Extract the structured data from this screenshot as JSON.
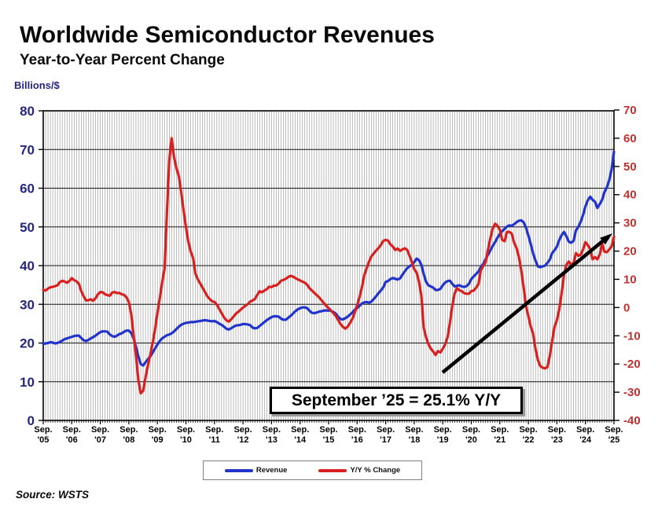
{
  "page": {
    "title": "Worldwide Semiconductor Revenues",
    "subtitle": "Year-to-Year Percent Change",
    "left_axis_unit": "Billions/$",
    "source": "Source: WSTS"
  },
  "annotation": {
    "label": "September ’25 = 25.1% Y/Y"
  },
  "legend": {
    "items": [
      {
        "label": "Revenue",
        "color": "#2233cc"
      },
      {
        "label": "Y/Y % Change",
        "color": "#d92020"
      }
    ]
  },
  "colors": {
    "revenue_line": "#2233cc",
    "yoy_line": "#d92020",
    "left_axis_text": "#26267f",
    "right_axis_text": "#c13030",
    "grid_vertical": "#8e8e8e",
    "grid_horizontal": "#161616",
    "plot_border": "#000000",
    "arrow": "#000000"
  },
  "chart_data": {
    "type": "line",
    "title": "Worldwide Semiconductor Revenues",
    "subtitle": "Year-to-Year Percent Change",
    "x_interval": "monthly",
    "x_start": "Sep 2005",
    "x_end": "Sep 2025",
    "x_tick_labels": [
      "Sep. '05",
      "Sep. '06",
      "Sep. '07",
      "Sep. '08",
      "Sep. '09",
      "Sep. '10",
      "Sep. '11",
      "Sep. '12",
      "Sep. '13",
      "Sep. '14",
      "Sep. '15",
      "Sep. '16",
      "Sep. '17",
      "Sep. '18",
      "Sep. '19",
      "Sep. '20",
      "Sep. '21",
      "Sep. '22",
      "Sep. '23",
      "Sep. '24",
      "Sep. '25"
    ],
    "left_axis": {
      "label": "Billions/$",
      "min": 0,
      "max": 80,
      "tick_step": 10
    },
    "right_axis": {
      "label": "Y/Y % Change",
      "min": -40,
      "max": 70,
      "tick_step": 10
    },
    "grid": "monthly vertical lines, horizontal lines every 10 left-axis units",
    "legend_position": "bottom",
    "annotation": "September '25 = 25.1% Y/Y",
    "series": [
      {
        "name": "Revenue",
        "axis": "left",
        "units": "US$ billions per month (3-month moving average)",
        "color": "#2233cc",
        "values": [
          19.8,
          19.9,
          20.0,
          20.2,
          20.1,
          19.9,
          20.0,
          20.3,
          20.6,
          21.0,
          21.2,
          21.4,
          21.6,
          21.8,
          21.9,
          21.9,
          21.3,
          20.7,
          20.5,
          20.8,
          21.2,
          21.5,
          21.9,
          22.4,
          22.8,
          23.0,
          23.0,
          22.9,
          22.2,
          21.8,
          21.6,
          21.9,
          22.3,
          22.5,
          22.9,
          23.2,
          23.2,
          22.6,
          21.2,
          19.0,
          16.5,
          14.6,
          14.2,
          15.0,
          15.8,
          16.5,
          17.5,
          18.6,
          19.6,
          20.5,
          21.2,
          21.6,
          22.0,
          22.2,
          22.5,
          23.0,
          23.6,
          24.2,
          24.7,
          25.0,
          25.2,
          25.3,
          25.4,
          25.4,
          25.5,
          25.6,
          25.7,
          25.8,
          25.9,
          25.8,
          25.7,
          25.6,
          25.7,
          25.4,
          25.0,
          24.7,
          24.2,
          23.7,
          23.5,
          23.8,
          24.2,
          24.5,
          24.6,
          24.7,
          24.9,
          24.9,
          24.8,
          24.6,
          24.0,
          23.8,
          23.9,
          24.4,
          24.9,
          25.4,
          25.9,
          26.3,
          26.7,
          26.9,
          26.9,
          26.8,
          26.3,
          26.0,
          26.0,
          26.5,
          27.0,
          27.6,
          28.2,
          28.7,
          29.0,
          29.2,
          29.2,
          29.0,
          28.3,
          27.8,
          27.7,
          27.9,
          28.1,
          28.2,
          28.4,
          28.4,
          28.4,
          28.3,
          28.0,
          27.6,
          26.8,
          26.2,
          26.1,
          26.4,
          26.8,
          27.3,
          27.9,
          28.6,
          29.0,
          29.6,
          30.2,
          30.5,
          30.6,
          30.4,
          30.7,
          31.4,
          32.1,
          32.9,
          33.6,
          34.4,
          35.8,
          36.0,
          36.5,
          36.8,
          36.6,
          36.4,
          36.7,
          37.6,
          38.5,
          39.3,
          39.8,
          40.2,
          40.9,
          41.8,
          41.4,
          40.2,
          37.8,
          35.8,
          34.9,
          34.6,
          34.3,
          33.7,
          33.7,
          34.0,
          34.9,
          35.6,
          36.0,
          36.1,
          35.3,
          34.6,
          34.8,
          34.9,
          34.6,
          34.5,
          34.7,
          35.3,
          36.5,
          37.2,
          37.8,
          38.5,
          39.6,
          40.4,
          41.6,
          42.8,
          43.9,
          45.1,
          46.1,
          47.2,
          48.2,
          48.9,
          49.5,
          50.1,
          50.4,
          50.3,
          50.7,
          51.2,
          51.6,
          51.7,
          51.2,
          49.8,
          47.8,
          45.6,
          43.2,
          41.3,
          39.8,
          39.6,
          39.8,
          40.0,
          40.7,
          41.5,
          43.2,
          44.0,
          44.9,
          46.6,
          47.9,
          48.7,
          47.6,
          46.2,
          45.9,
          46.4,
          49.1,
          50.0,
          51.3,
          53.1,
          55.3,
          56.9,
          57.8,
          57.0,
          56.5,
          54.9,
          55.9,
          57.0,
          59.0,
          60.2,
          62.1,
          64.9,
          69.4
        ]
      },
      {
        "name": "Y/Y % Change",
        "axis": "right",
        "units": "percent year-over-year",
        "color": "#d92020",
        "values": [
          6.3,
          6.0,
          6.7,
          7.2,
          7.3,
          7.6,
          7.9,
          9.0,
          9.5,
          9.2,
          8.8,
          9.4,
          10.4,
          9.7,
          9.3,
          8.4,
          5.8,
          4.0,
          2.5,
          2.6,
          2.9,
          2.4,
          3.3,
          4.7,
          5.5,
          5.4,
          4.7,
          4.4,
          4.2,
          5.3,
          5.5,
          5.1,
          5.2,
          4.7,
          4.5,
          3.6,
          1.9,
          -2.3,
          -9.7,
          -17.2,
          -25.7,
          -30.4,
          -29.5,
          -24.8,
          -20.6,
          -16.8,
          -12.6,
          -7.8,
          -2.0,
          3.2,
          8.9,
          13.7,
          33.3,
          52.1,
          60.0,
          53.3,
          49.4,
          46.7,
          41.1,
          34.4,
          28.6,
          23.4,
          19.8,
          17.6,
          12.0,
          10.0,
          8.5,
          7.0,
          5.5,
          4.0,
          3.0,
          2.2,
          2.0,
          1.0,
          -0.5,
          -2.0,
          -3.5,
          -4.5,
          -5.0,
          -4.2,
          -3.2,
          -2.2,
          -1.5,
          -0.8,
          0.0,
          0.6,
          1.2,
          2.1,
          2.5,
          3.0,
          4.5,
          5.8,
          5.4,
          6.0,
          6.5,
          7.4,
          7.2,
          7.8,
          7.8,
          8.5,
          9.5,
          9.8,
          10.2,
          10.8,
          11.2,
          11.0,
          10.5,
          10.0,
          9.6,
          9.2,
          8.8,
          8.0,
          6.8,
          6.0,
          5.2,
          4.4,
          3.6,
          2.6,
          1.6,
          0.6,
          -0.2,
          -1.0,
          -2.0,
          -3.0,
          -4.4,
          -5.8,
          -6.8,
          -7.5,
          -6.8,
          -5.5,
          -4.0,
          -1.8,
          0.8,
          3.6,
          7.2,
          11.5,
          13.9,
          16.2,
          18.1,
          19.2,
          20.2,
          21.1,
          22.2,
          23.6,
          24.0,
          23.7,
          22.4,
          21.6,
          20.4,
          20.9,
          20.1,
          20.6,
          21.0,
          20.5,
          18.4,
          16.1,
          13.6,
          12.4,
          9.1,
          4.1,
          -7.2,
          -10.6,
          -13.0,
          -14.6,
          -15.6,
          -16.8,
          -15.4,
          -15.9,
          -14.6,
          -13.1,
          -10.6,
          -5.5,
          0.5,
          5.0,
          6.9,
          6.1,
          5.8,
          5.1,
          4.9,
          4.9,
          5.8,
          6.0,
          7.0,
          8.3,
          13.2,
          14.7,
          16.0,
          20.5,
          24.5,
          28.0,
          29.7,
          29.0,
          27.6,
          24.0,
          23.5,
          26.8,
          26.8,
          26.2,
          23.0,
          21.1,
          18.0,
          13.3,
          7.3,
          0.5,
          -3.0,
          -6.7,
          -9.2,
          -14.7,
          -18.5,
          -20.7,
          -21.3,
          -21.6,
          -21.1,
          -17.3,
          -11.8,
          -6.8,
          -4.5,
          -0.7,
          5.3,
          11.6,
          15.2,
          16.3,
          15.2,
          15.8,
          19.3,
          18.3,
          18.7,
          20.6,
          23.2,
          22.1,
          20.7,
          17.1,
          17.9,
          17.1,
          18.8,
          22.7,
          19.8,
          19.6,
          20.6,
          21.7,
          25.1
        ]
      }
    ],
    "key_points": {
      "latest": {
        "x": "Sep 2025",
        "revenue_billions": 69.4,
        "yoy_percent": 25.1
      },
      "yoy_peak_2010": 60.0,
      "yoy_trough_2009": -30.4,
      "yoy_trough_2023": -21.6
    }
  }
}
